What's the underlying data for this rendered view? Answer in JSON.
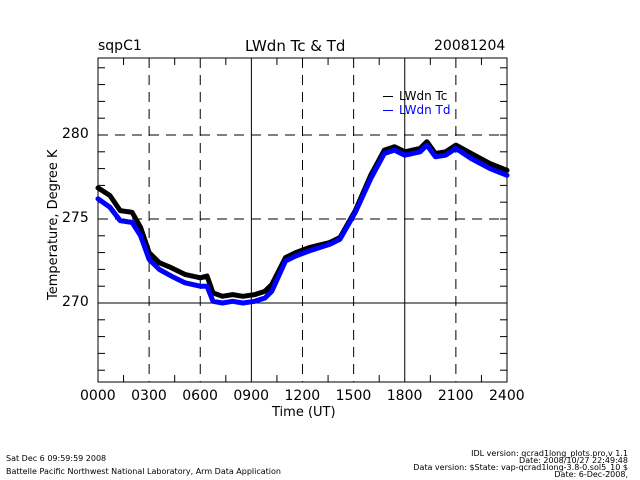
{
  "header": {
    "site": "sqpC1",
    "title": "LWdn Tc & Td",
    "date": "20081204"
  },
  "footer": {
    "left_line1": "Sat Dec  6 09:59:59 2008",
    "left_line2": "Battelle Pacific Northwest National Laboratory, Arm Data Application",
    "right_line1": "IDL version: qcrad1long_plots.pro,v 1.1",
    "right_line2": "Date: 2008/10/27 22:49:48",
    "right_line3": "Data version: $State: vap-qcrad1long-3.8-0.sol5_10 $",
    "right_line4": "Date: 6-Dec-2008,"
  },
  "chart_data": {
    "type": "line",
    "title": "LWdn Tc & Td",
    "xlabel": "Time (UT)",
    "ylabel": "Temperature, Degree K",
    "xlim": [
      0,
      24
    ],
    "ylim": [
      265.4,
      284.6
    ],
    "x_ticks": [
      0,
      3,
      6,
      9,
      12,
      15,
      18,
      21,
      24
    ],
    "x_tick_labels": [
      "0000",
      "0300",
      "0600",
      "0900",
      "1200",
      "1500",
      "1800",
      "2100",
      "2400"
    ],
    "y_ticks": [
      270,
      275,
      280
    ],
    "y_tick_labels": [
      "270",
      "275",
      "280"
    ],
    "grid": "dashed at x ticks and y=275,280; solid at x=9,12? (mixed)",
    "legend_position": "top-right",
    "series": [
      {
        "name": "LWdn Tc",
        "color": "#000000",
        "x": [
          0,
          0.7,
          1.3,
          2.0,
          2.5,
          3.0,
          3.6,
          4.3,
          5.1,
          6.0,
          6.4,
          6.75,
          7.3,
          7.9,
          8.5,
          9.2,
          9.8,
          10.2,
          11.0,
          11.6,
          12.4,
          13.6,
          14.2,
          15.1,
          16.0,
          16.8,
          17.4,
          18.0,
          18.9,
          19.3,
          19.8,
          20.4,
          21.0,
          21.9,
          23.0,
          24.0
        ],
        "values": [
          276.85,
          276.4,
          275.5,
          275.4,
          274.5,
          273.0,
          272.4,
          272.1,
          271.7,
          271.5,
          271.6,
          270.6,
          270.4,
          270.5,
          270.4,
          270.5,
          270.7,
          271.1,
          272.7,
          273.0,
          273.3,
          273.6,
          273.9,
          275.5,
          277.6,
          279.1,
          279.3,
          279.0,
          279.2,
          279.6,
          278.9,
          279.0,
          279.4,
          278.9,
          278.3,
          277.9
        ]
      },
      {
        "name": "LWdn Td",
        "color": "#0000ff",
        "x": [
          0,
          0.7,
          1.3,
          2.0,
          2.5,
          3.0,
          3.6,
          4.3,
          5.1,
          6.0,
          6.4,
          6.75,
          7.3,
          7.9,
          8.5,
          9.2,
          9.8,
          10.2,
          11.0,
          11.6,
          12.4,
          13.6,
          14.2,
          15.1,
          16.0,
          16.8,
          17.4,
          18.0,
          18.9,
          19.3,
          19.8,
          20.4,
          21.0,
          21.9,
          23.0,
          24.0
        ],
        "values": [
          276.2,
          275.7,
          274.9,
          274.8,
          274.0,
          272.6,
          272.0,
          271.6,
          271.2,
          271.0,
          271.0,
          270.1,
          270.0,
          270.1,
          270.0,
          270.1,
          270.3,
          270.7,
          272.5,
          272.8,
          273.1,
          273.5,
          273.8,
          275.4,
          277.4,
          278.9,
          279.1,
          278.8,
          279.0,
          279.4,
          278.7,
          278.8,
          279.2,
          278.6,
          278.0,
          277.6
        ]
      }
    ]
  }
}
